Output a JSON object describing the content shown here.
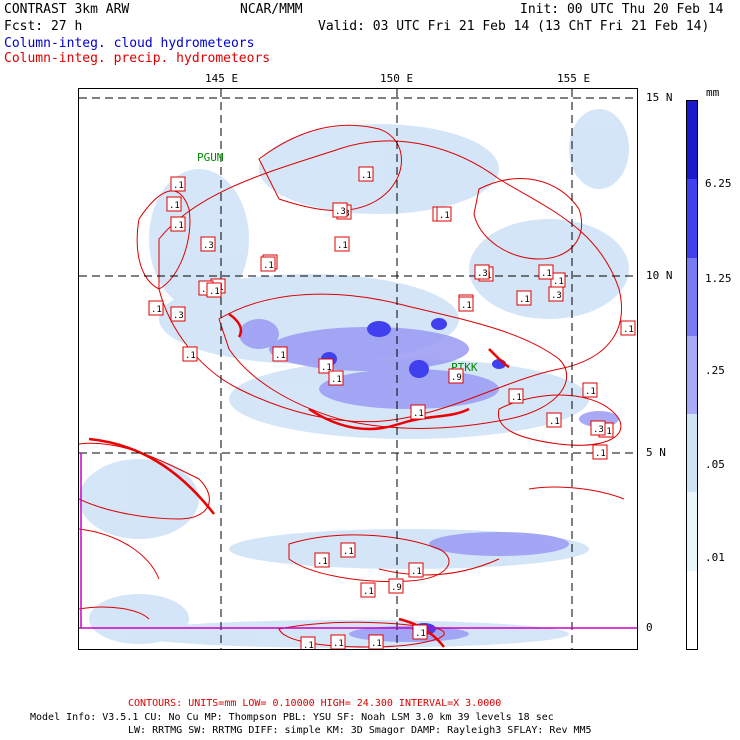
{
  "header": {
    "model": "CONTRAST  3km ARW",
    "center": "NCAR/MMM",
    "init": "Init: 00 UTC Thu 20 Feb 14",
    "fcst": "Fcst:   27 h",
    "valid": "Valid: 03 UTC Fri 21 Feb 14 (13 ChT Fri 21 Feb 14)",
    "cloud_field": "Column-integ. cloud hydrometeors",
    "precip_field": "Column-integ. precip. hydrometeors"
  },
  "axes": {
    "lon_ticks": [
      "145 E",
      "150 E",
      "155 E"
    ],
    "lat_ticks": [
      "15 N",
      "10 N",
      "5 N",
      "0"
    ]
  },
  "stations": [
    "PGUM",
    "PTKK"
  ],
  "contour_labels": [
    ".1",
    ".1",
    ".1",
    ".3",
    ".1",
    ".1",
    ".1",
    ".3",
    ".1",
    ".1",
    ".1",
    ".3",
    ".1",
    ".1",
    ".1",
    ".1",
    ".1",
    ".1",
    ".3",
    ".1",
    ".1",
    ".1",
    ".1",
    ".1",
    ".3",
    ".1",
    ".1",
    ".1",
    ".1",
    ".1",
    ".1",
    ".1",
    ".3",
    ".1",
    ".1",
    ".1",
    ".9",
    ".1",
    ".1",
    ".1",
    ".1",
    ".1",
    ".3",
    ".1",
    ".1",
    ".1",
    ".9",
    ".1"
  ],
  "colorbar": {
    "unit": "mm",
    "labels": [
      "6.25",
      "1.25",
      ".25",
      ".05",
      ".01"
    ],
    "colors": [
      "#1a1acc",
      "#4040ee",
      "#7a7af4",
      "#a9a9f8",
      "#cfe3f7",
      "#e8f6fb",
      "#ffffff"
    ]
  },
  "footer": {
    "contours": "CONTOURS:  UNITS=mm  LOW= 0.10000     HIGH= 24.300      INTERVAL=X  3.0000",
    "line1": "Model Info: V3.5.1    CU: No Cu    MP: Thompson    PBL: YSU     SF: Noah LSM     3.0 km   39 levels    18 sec",
    "line2": "LW: RRTMG    SW: RRTMG   DIFF: simple KM: 3D Smagor DAMP: Rayleigh3  SFLAY: Rev MM5"
  }
}
